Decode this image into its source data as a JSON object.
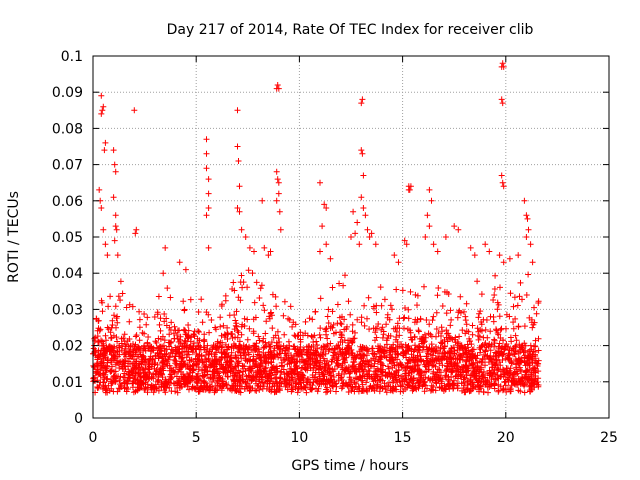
{
  "chart_data": {
    "type": "scatter",
    "title": "Day 217 of 2014, Rate Of TEC Index for receiver clib",
    "xlabel": "GPS time / hours",
    "ylabel": "ROTI / TECUs",
    "xlim": [
      0,
      25
    ],
    "ylim": [
      0,
      0.1
    ],
    "xticks": [
      0,
      5,
      10,
      15,
      20,
      25
    ],
    "xtick_labels": [
      "0",
      "5",
      "10",
      "15",
      "20",
      "25"
    ],
    "yticks": [
      0,
      0.01,
      0.02,
      0.03,
      0.04,
      0.05,
      0.06,
      0.07,
      0.08,
      0.09,
      0.1
    ],
    "ytick_labels": [
      "0",
      "0.01",
      "0.02",
      "0.03",
      "0.04",
      "0.05",
      "0.06",
      "0.07",
      "0.08",
      "0.09",
      "0.1"
    ],
    "grid": true,
    "marker": "plus",
    "color": "#ff0000",
    "data_range_x": [
      0,
      21.6
    ],
    "envelope": [
      [
        0.0,
        0.035
      ],
      [
        0.5,
        0.032
      ],
      [
        1.0,
        0.042
      ],
      [
        1.5,
        0.036
      ],
      [
        2.0,
        0.03
      ],
      [
        2.5,
        0.03
      ],
      [
        3.0,
        0.032
      ],
      [
        3.5,
        0.038
      ],
      [
        4.0,
        0.035
      ],
      [
        4.5,
        0.035
      ],
      [
        5.0,
        0.035
      ],
      [
        5.5,
        0.032
      ],
      [
        6.0,
        0.03
      ],
      [
        6.5,
        0.036
      ],
      [
        7.0,
        0.04
      ],
      [
        7.5,
        0.041
      ],
      [
        8.0,
        0.04
      ],
      [
        8.5,
        0.038
      ],
      [
        9.0,
        0.034
      ],
      [
        9.5,
        0.032
      ],
      [
        10.0,
        0.025
      ],
      [
        10.5,
        0.03
      ],
      [
        11.0,
        0.036
      ],
      [
        11.5,
        0.038
      ],
      [
        12.0,
        0.04
      ],
      [
        12.5,
        0.042
      ],
      [
        13.0,
        0.04
      ],
      [
        13.5,
        0.04
      ],
      [
        14.0,
        0.036
      ],
      [
        14.5,
        0.036
      ],
      [
        15.0,
        0.038
      ],
      [
        15.5,
        0.034
      ],
      [
        16.0,
        0.036
      ],
      [
        16.5,
        0.04
      ],
      [
        17.0,
        0.035
      ],
      [
        17.5,
        0.035
      ],
      [
        18.0,
        0.034
      ],
      [
        18.5,
        0.038
      ],
      [
        19.0,
        0.04
      ],
      [
        19.5,
        0.04
      ],
      [
        20.0,
        0.036
      ],
      [
        20.5,
        0.036
      ],
      [
        21.0,
        0.042
      ],
      [
        21.6,
        0.036
      ]
    ],
    "outliers": [
      [
        0.4,
        0.089
      ],
      [
        0.45,
        0.085
      ],
      [
        0.5,
        0.086
      ],
      [
        0.4,
        0.084
      ],
      [
        0.6,
        0.076
      ],
      [
        0.55,
        0.074
      ],
      [
        0.3,
        0.063
      ],
      [
        0.35,
        0.06
      ],
      [
        0.4,
        0.058
      ],
      [
        0.5,
        0.052
      ],
      [
        0.6,
        0.048
      ],
      [
        0.7,
        0.045
      ],
      [
        1.0,
        0.074
      ],
      [
        1.05,
        0.07
      ],
      [
        1.1,
        0.068
      ],
      [
        1.0,
        0.061
      ],
      [
        1.1,
        0.053
      ],
      [
        1.15,
        0.052
      ],
      [
        1.05,
        0.049
      ],
      [
        1.2,
        0.045
      ],
      [
        1.1,
        0.056
      ],
      [
        2.0,
        0.085
      ],
      [
        2.1,
        0.052
      ],
      [
        2.05,
        0.051
      ],
      [
        3.5,
        0.047
      ],
      [
        3.4,
        0.04
      ],
      [
        4.2,
        0.043
      ],
      [
        4.5,
        0.041
      ],
      [
        5.5,
        0.077
      ],
      [
        5.5,
        0.073
      ],
      [
        5.5,
        0.069
      ],
      [
        5.6,
        0.066
      ],
      [
        5.6,
        0.062
      ],
      [
        5.6,
        0.058
      ],
      [
        5.5,
        0.056
      ],
      [
        5.6,
        0.047
      ],
      [
        7.0,
        0.085
      ],
      [
        7.0,
        0.075
      ],
      [
        7.05,
        0.071
      ],
      [
        7.1,
        0.064
      ],
      [
        7.0,
        0.058
      ],
      [
        7.1,
        0.057
      ],
      [
        7.2,
        0.052
      ],
      [
        7.4,
        0.05
      ],
      [
        7.6,
        0.047
      ],
      [
        7.8,
        0.046
      ],
      [
        8.9,
        0.091
      ],
      [
        8.95,
        0.092
      ],
      [
        9.0,
        0.091
      ],
      [
        8.9,
        0.068
      ],
      [
        8.95,
        0.066
      ],
      [
        9.0,
        0.065
      ],
      [
        9.0,
        0.062
      ],
      [
        8.9,
        0.06
      ],
      [
        9.05,
        0.057
      ],
      [
        9.1,
        0.052
      ],
      [
        8.2,
        0.06
      ],
      [
        8.3,
        0.047
      ],
      [
        8.6,
        0.046
      ],
      [
        8.5,
        0.045
      ],
      [
        11.0,
        0.065
      ],
      [
        11.2,
        0.059
      ],
      [
        11.3,
        0.058
      ],
      [
        11.1,
        0.053
      ],
      [
        11.3,
        0.048
      ],
      [
        11.0,
        0.046
      ],
      [
        11.5,
        0.044
      ],
      [
        12.6,
        0.057
      ],
      [
        12.8,
        0.054
      ],
      [
        12.7,
        0.051
      ],
      [
        12.5,
        0.05
      ],
      [
        12.9,
        0.048
      ],
      [
        13.0,
        0.087
      ],
      [
        13.05,
        0.088
      ],
      [
        13.0,
        0.074
      ],
      [
        13.05,
        0.073
      ],
      [
        13.1,
        0.067
      ],
      [
        13.0,
        0.061
      ],
      [
        13.1,
        0.058
      ],
      [
        13.2,
        0.056
      ],
      [
        13.3,
        0.052
      ],
      [
        13.5,
        0.051
      ],
      [
        13.7,
        0.048
      ],
      [
        13.4,
        0.05
      ],
      [
        14.6,
        0.045
      ],
      [
        14.8,
        0.043
      ],
      [
        15.1,
        0.049
      ],
      [
        15.2,
        0.048
      ],
      [
        15.3,
        0.064
      ],
      [
        15.35,
        0.063
      ],
      [
        15.4,
        0.064
      ],
      [
        15.3,
        0.063
      ],
      [
        16.3,
        0.063
      ],
      [
        16.4,
        0.06
      ],
      [
        16.2,
        0.056
      ],
      [
        16.3,
        0.053
      ],
      [
        16.1,
        0.05
      ],
      [
        16.5,
        0.048
      ],
      [
        16.7,
        0.046
      ],
      [
        17.1,
        0.05
      ],
      [
        17.5,
        0.053
      ],
      [
        17.7,
        0.052
      ],
      [
        18.3,
        0.047
      ],
      [
        18.5,
        0.045
      ],
      [
        19.0,
        0.048
      ],
      [
        19.2,
        0.046
      ],
      [
        19.8,
        0.097
      ],
      [
        19.85,
        0.098
      ],
      [
        19.9,
        0.097
      ],
      [
        19.8,
        0.088
      ],
      [
        19.85,
        0.087
      ],
      [
        19.8,
        0.067
      ],
      [
        19.85,
        0.065
      ],
      [
        19.9,
        0.064
      ],
      [
        19.7,
        0.045
      ],
      [
        19.9,
        0.043
      ],
      [
        20.2,
        0.044
      ],
      [
        20.6,
        0.045
      ],
      [
        20.9,
        0.06
      ],
      [
        21.0,
        0.056
      ],
      [
        21.05,
        0.055
      ],
      [
        21.1,
        0.052
      ],
      [
        21.0,
        0.05
      ],
      [
        21.2,
        0.048
      ],
      [
        21.3,
        0.043
      ]
    ]
  }
}
